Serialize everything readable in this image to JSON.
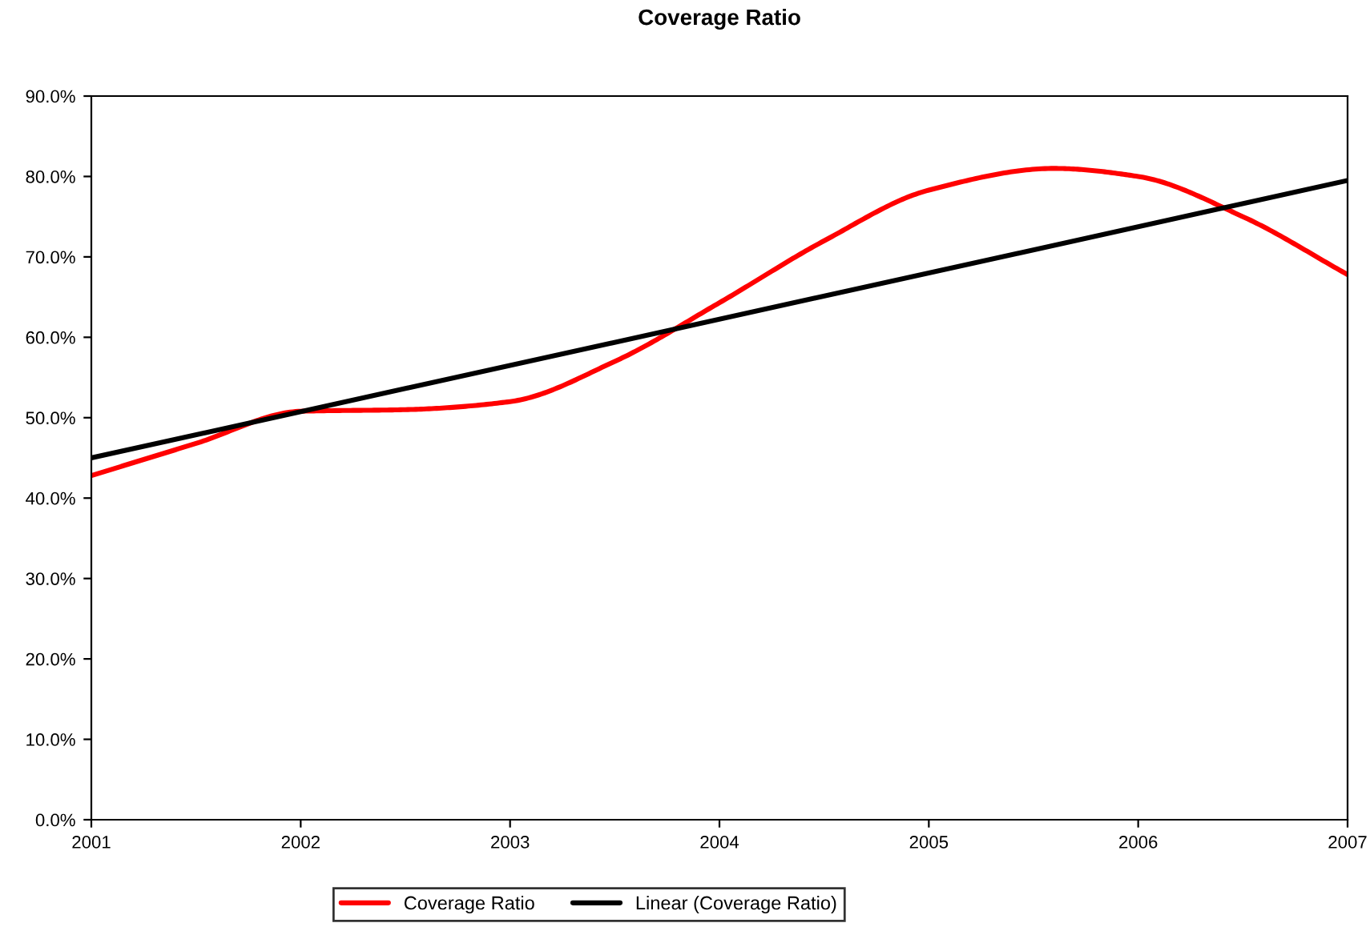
{
  "chart_data": {
    "type": "line",
    "title": "Coverage Ratio",
    "x": [
      2001,
      2001.5,
      2002,
      2002.5,
      2003,
      2003.5,
      2004,
      2004.5,
      2005,
      2005.6,
      2006,
      2006.5,
      2007
    ],
    "series": [
      {
        "name": "Coverage Ratio",
        "color": "#ff0000",
        "values": [
          42.8,
          46.8,
          50.8,
          51.0,
          52.0,
          57.0,
          64.3,
          72.0,
          78.3,
          81.0,
          80.0,
          75.0,
          67.8
        ]
      },
      {
        "name": "Linear (Coverage Ratio)",
        "color": "#000000",
        "type": "line",
        "x": [
          2001,
          2007
        ],
        "values": [
          45.0,
          79.5
        ]
      }
    ],
    "xlim": [
      2001,
      2007
    ],
    "xticks": [
      2001,
      2002,
      2003,
      2004,
      2005,
      2006,
      2007
    ],
    "ylim": [
      0,
      90
    ],
    "yticks": [
      {
        "value": 0,
        "label": "0.0%"
      },
      {
        "value": 10,
        "label": "10.0%"
      },
      {
        "value": 20,
        "label": "20.0%"
      },
      {
        "value": 30,
        "label": "30.0%"
      },
      {
        "value": 40,
        "label": "40.0%"
      },
      {
        "value": 50,
        "label": "50.0%"
      },
      {
        "value": 60,
        "label": "60.0%"
      },
      {
        "value": 70,
        "label": "70.0%"
      },
      {
        "value": 80,
        "label": "80.0%"
      },
      {
        "value": 90,
        "label": "90.0%"
      }
    ],
    "grid": false,
    "legend": "bottom",
    "marker": "none",
    "line_style": "solid"
  }
}
